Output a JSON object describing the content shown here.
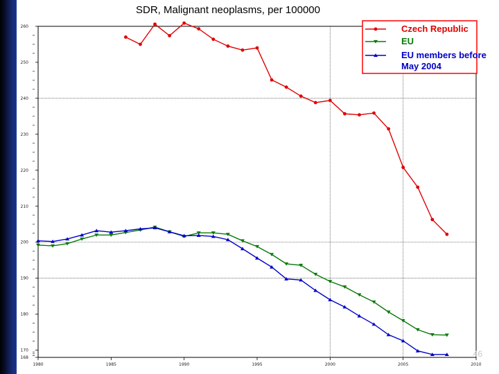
{
  "slide": {
    "page_number": "46"
  },
  "colors": {
    "czech": "#e00000",
    "eu": "#0a7a0a",
    "eu_before_2004": "#0000c8",
    "legend_border": "#ff0000"
  },
  "chart_data": {
    "type": "line",
    "title": "SDR, Malignant neoplasms, per 100000",
    "xlabel": "",
    "ylabel": "",
    "xlim": [
      1980,
      2010
    ],
    "ylim": [
      168,
      260
    ],
    "x_ticks": [
      1980,
      1985,
      1990,
      1995,
      2000,
      2005,
      2010
    ],
    "y_ticks": [
      168,
      170,
      180,
      190,
      200,
      210,
      220,
      230,
      240,
      250,
      260
    ],
    "legend_placement": "top-right",
    "grid_x": [
      2000,
      2005
    ],
    "grid_y": [
      200,
      190,
      240
    ],
    "series": [
      {
        "name": "Czech Republic",
        "color_key": "czech",
        "marker": "circle",
        "points": [
          [
            1986,
            257.0
          ],
          [
            1987,
            255.0
          ],
          [
            1988,
            260.6
          ],
          [
            1989,
            257.4
          ],
          [
            1990,
            260.9
          ],
          [
            1991,
            259.3
          ],
          [
            1992,
            256.4
          ],
          [
            1993,
            254.5
          ],
          [
            1994,
            253.4
          ],
          [
            1995,
            254.0
          ],
          [
            1996,
            245.1
          ],
          [
            1997,
            243.1
          ],
          [
            1998,
            240.6
          ],
          [
            1999,
            238.8
          ],
          [
            2000,
            239.4
          ],
          [
            2001,
            235.7
          ],
          [
            2002,
            235.4
          ],
          [
            2003,
            235.9
          ],
          [
            2004,
            231.5
          ],
          [
            2005,
            220.8
          ],
          [
            2006,
            215.3
          ],
          [
            2007,
            206.3
          ],
          [
            2008,
            202.2
          ]
        ]
      },
      {
        "name": "EU",
        "color_key": "eu",
        "marker": "triangle-down",
        "points": [
          [
            1980,
            199.2
          ],
          [
            1981,
            199.0
          ],
          [
            1982,
            199.6
          ],
          [
            1983,
            200.9
          ],
          [
            1984,
            202.0
          ],
          [
            1985,
            202.0
          ],
          [
            1986,
            202.7
          ],
          [
            1987,
            203.4
          ],
          [
            1988,
            204.2
          ],
          [
            1989,
            202.9
          ],
          [
            1990,
            201.6
          ],
          [
            1991,
            202.6
          ],
          [
            1992,
            202.6
          ],
          [
            1993,
            202.2
          ],
          [
            1994,
            200.4
          ],
          [
            1995,
            198.8
          ],
          [
            1996,
            196.6
          ],
          [
            1997,
            194.0
          ],
          [
            1998,
            193.6
          ],
          [
            1999,
            191.1
          ],
          [
            2000,
            189.1
          ],
          [
            2001,
            187.6
          ],
          [
            2002,
            185.4
          ],
          [
            2003,
            183.4
          ],
          [
            2004,
            180.6
          ],
          [
            2005,
            178.2
          ],
          [
            2006,
            175.7
          ],
          [
            2007,
            174.3
          ],
          [
            2008,
            174.2
          ]
        ]
      },
      {
        "name": "EU members before May 2004",
        "color_key": "eu_before_2004",
        "marker": "triangle-up",
        "points": [
          [
            1980,
            200.4
          ],
          [
            1981,
            200.2
          ],
          [
            1982,
            200.9
          ],
          [
            1983,
            202.0
          ],
          [
            1984,
            203.2
          ],
          [
            1985,
            202.8
          ],
          [
            1986,
            203.2
          ],
          [
            1987,
            203.7
          ],
          [
            1988,
            204.0
          ],
          [
            1989,
            202.9
          ],
          [
            1990,
            201.8
          ],
          [
            1991,
            201.9
          ],
          [
            1992,
            201.6
          ],
          [
            1993,
            200.7
          ],
          [
            1994,
            198.2
          ],
          [
            1995,
            195.6
          ],
          [
            1996,
            193.1
          ],
          [
            1997,
            189.8
          ],
          [
            1998,
            189.5
          ],
          [
            1999,
            186.6
          ],
          [
            2000,
            184.0
          ],
          [
            2001,
            182.0
          ],
          [
            2002,
            179.5
          ],
          [
            2003,
            177.2
          ],
          [
            2004,
            174.3
          ],
          [
            2005,
            172.6
          ],
          [
            2006,
            169.8
          ],
          [
            2007,
            168.8
          ],
          [
            2008,
            168.8
          ]
        ]
      }
    ]
  }
}
